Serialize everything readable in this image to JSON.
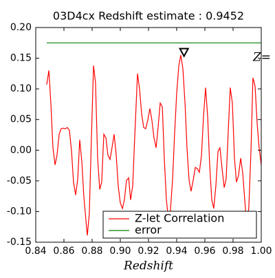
{
  "chart_data": {
    "type": "line",
    "title": "03D4cx Redshift estimate : 0.9452",
    "x_label": "Redshift",
    "annotation": "Z=",
    "xlim": [
      0.84,
      1.0
    ],
    "ylim": [
      -0.15,
      0.2
    ],
    "xticks": [
      0.84,
      0.86,
      0.88,
      {
        "value": 0.9,
        "label": "0.90"
      },
      0.92,
      0.94,
      0.96,
      0.98,
      {
        "value": 1.0,
        "label": "1.00"
      }
    ],
    "yticks": [
      {
        "value": -0.15,
        "label": "-0.15"
      },
      {
        "value": -0.1,
        "label": "-0.10"
      },
      -0.05,
      {
        "value": 0,
        "label": "0.00"
      },
      0.05,
      {
        "value": 0.1,
        "label": "0.10"
      },
      0.15,
      {
        "value": 0.2,
        "label": "0.20"
      }
    ],
    "legend": "lower right",
    "series": [
      {
        "name": "Z-let Correlation",
        "color": "#ff0000",
        "x": [
          0.8478,
          0.8493,
          0.8507,
          0.8522,
          0.8537,
          0.8551,
          0.8566,
          0.858,
          0.8595,
          0.861,
          0.8624,
          0.8639,
          0.8654,
          0.8668,
          0.8683,
          0.8698,
          0.8712,
          0.8727,
          0.8741,
          0.8756,
          0.8766,
          0.878,
          0.8795,
          0.881,
          0.8824,
          0.8839,
          0.8854,
          0.8868,
          0.8883,
          0.8898,
          0.8912,
          0.8927,
          0.8941,
          0.8956,
          0.8971,
          0.8985,
          0.9,
          0.9015,
          0.9029,
          0.9044,
          0.9059,
          0.9073,
          0.9088,
          0.9102,
          0.9122,
          0.9137,
          0.9151,
          0.9166,
          0.918,
          0.9195,
          0.921,
          0.9224,
          0.9239,
          0.9254,
          0.9268,
          0.9283,
          0.9298,
          0.9312,
          0.9327,
          0.9341,
          0.9356,
          0.9371,
          0.9385,
          0.94,
          0.9415,
          0.9429,
          0.9444,
          0.9459,
          0.9473,
          0.9488,
          0.9502,
          0.9517,
          0.9532,
          0.9546,
          0.9561,
          0.9576,
          0.959,
          0.9605,
          0.962,
          0.9634,
          0.9649,
          0.9663,
          0.9678,
          0.9693,
          0.9707,
          0.9722,
          0.9737,
          0.9751,
          0.9766,
          0.978,
          0.9795,
          0.981,
          0.9824,
          0.9839,
          0.9854,
          0.9868,
          0.9883,
          0.9898,
          0.9912,
          0.9927,
          0.9941,
          0.9956,
          0.9971,
          0.9985,
          1.0
        ],
        "values": [
          0.107,
          0.13,
          0.077,
          0.004,
          -0.024,
          -0.008,
          0.026,
          0.035,
          0.036,
          0.035,
          0.037,
          0.032,
          -0.002,
          -0.052,
          -0.073,
          -0.047,
          0.017,
          -0.019,
          -0.075,
          -0.114,
          -0.139,
          -0.103,
          0.02,
          0.138,
          0.11,
          -0.013,
          -0.064,
          -0.052,
          0.026,
          0.02,
          -0.008,
          -0.015,
          0.004,
          0.026,
          -0.008,
          -0.058,
          -0.086,
          -0.095,
          -0.081,
          -0.049,
          -0.045,
          -0.081,
          -0.058,
          0.02,
          0.125,
          0.099,
          0.06,
          0.037,
          0.035,
          0.049,
          0.068,
          0.049,
          0.02,
          0.004,
          0.037,
          0.077,
          0.071,
          -0.013,
          -0.081,
          -0.112,
          -0.097,
          -0.047,
          0.026,
          0.093,
          0.138,
          0.155,
          0.133,
          0.077,
          0.004,
          -0.049,
          -0.067,
          -0.049,
          -0.028,
          -0.03,
          -0.036,
          -0.008,
          0.054,
          0.102,
          0.054,
          -0.024,
          -0.081,
          -0.095,
          -0.058,
          -0.002,
          0.004,
          -0.03,
          -0.061,
          -0.047,
          0.032,
          0.102,
          0.077,
          -0.013,
          -0.052,
          -0.041,
          -0.013,
          -0.036,
          -0.081,
          -0.125,
          -0.092,
          -0.002,
          0.118,
          0.105,
          0.043,
          0.004,
          -0.024
        ]
      },
      {
        "name": "error",
        "color": "#008000",
        "x": [
          0.8478,
          1.0
        ],
        "values": [
          0.175,
          0.175
        ]
      }
    ],
    "marker": {
      "x": 0.9452,
      "y": 0.16,
      "color": "#000000"
    }
  }
}
